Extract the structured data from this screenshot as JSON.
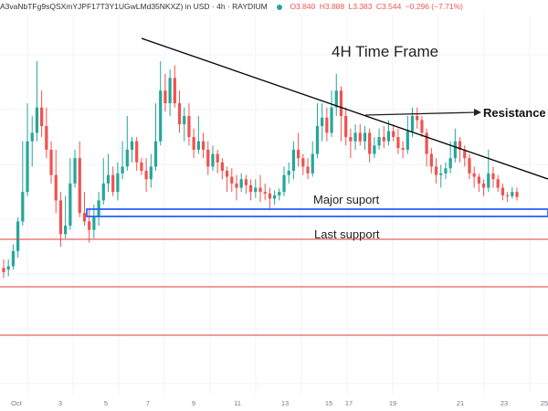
{
  "header": {
    "symbol": "A3vaNbTFg9sQSXmYJPF17T3Y1UGwLMd35NKXZ) in USD · 4h · RAYDIUM",
    "open": "O3.840",
    "high": "H3.888",
    "low": "L3.383",
    "close": "C3.544",
    "change": "−0.296 (−7.71%)",
    "status_color": "#26a69a"
  },
  "annotations": {
    "title": "4H Time Frame",
    "resistance": "Resistance T",
    "major_support": "Major suport",
    "last_support": "Last support"
  },
  "colors": {
    "up": "#26a69a",
    "down": "#ef5350",
    "support_box": "#2962ff",
    "horizontal_line": "#e53935",
    "trendline": "#000000"
  },
  "chart_data": {
    "type": "candlestick",
    "x_tick_labels": [
      "Oct",
      "3",
      "5",
      "7",
      "9",
      "11",
      "13",
      "15",
      "17",
      "19",
      "21",
      "23",
      "25"
    ],
    "price_min": 0,
    "price_max": 450,
    "note_units": "price axis not printed; values in relative price units",
    "candles": [
      [
        150,
        145,
        160,
        138
      ],
      [
        148,
        152,
        160,
        140
      ],
      [
        152,
        170,
        178,
        148
      ],
      [
        170,
        205,
        210,
        162
      ],
      [
        205,
        240,
        300,
        200
      ],
      [
        240,
        300,
        345,
        235
      ],
      [
        300,
        310,
        330,
        270
      ],
      [
        310,
        340,
        395,
        300
      ],
      [
        340,
        318,
        360,
        305
      ],
      [
        318,
        290,
        340,
        280
      ],
      [
        290,
        260,
        300,
        250
      ],
      [
        260,
        230,
        290,
        215
      ],
      [
        230,
        190,
        240,
        175
      ],
      [
        190,
        200,
        235,
        185
      ],
      [
        200,
        250,
        280,
        195
      ],
      [
        250,
        280,
        290,
        245
      ],
      [
        280,
        215,
        300,
        210
      ],
      [
        215,
        205,
        240,
        200
      ],
      [
        205,
        195,
        220,
        180
      ],
      [
        195,
        210,
        225,
        185
      ],
      [
        210,
        230,
        240,
        200
      ],
      [
        230,
        250,
        280,
        225
      ],
      [
        250,
        260,
        285,
        240
      ],
      [
        260,
        240,
        270,
        235
      ],
      [
        240,
        262,
        275,
        230
      ],
      [
        262,
        270,
        300,
        255
      ],
      [
        270,
        290,
        330,
        265
      ],
      [
        290,
        300,
        305,
        275
      ],
      [
        300,
        275,
        305,
        265
      ],
      [
        275,
        265,
        280,
        260
      ],
      [
        265,
        255,
        280,
        240
      ],
      [
        255,
        270,
        285,
        245
      ],
      [
        270,
        300,
        345,
        265
      ],
      [
        300,
        360,
        395,
        295
      ],
      [
        360,
        345,
        380,
        335
      ],
      [
        345,
        375,
        385,
        330
      ],
      [
        375,
        345,
        390,
        340
      ],
      [
        345,
        320,
        360,
        310
      ],
      [
        320,
        330,
        340,
        300
      ],
      [
        330,
        305,
        345,
        295
      ],
      [
        305,
        290,
        315,
        280
      ],
      [
        290,
        300,
        330,
        285
      ],
      [
        300,
        290,
        310,
        280
      ],
      [
        290,
        270,
        300,
        260
      ],
      [
        270,
        285,
        295,
        265
      ],
      [
        285,
        275,
        290,
        262
      ],
      [
        275,
        265,
        280,
        255
      ],
      [
        265,
        258,
        270,
        240
      ],
      [
        258,
        250,
        268,
        240
      ],
      [
        250,
        245,
        260,
        230
      ],
      [
        245,
        255,
        262,
        240
      ],
      [
        255,
        248,
        260,
        238
      ],
      [
        248,
        240,
        255,
        230
      ],
      [
        240,
        245,
        255,
        233
      ],
      [
        245,
        240,
        260,
        228
      ],
      [
        240,
        238,
        250,
        230
      ],
      [
        238,
        232,
        245,
        220
      ],
      [
        232,
        236,
        242,
        225
      ],
      [
        236,
        240,
        244,
        230
      ],
      [
        240,
        260,
        270,
        235
      ],
      [
        260,
        265,
        275,
        250
      ],
      [
        265,
        290,
        300,
        255
      ],
      [
        290,
        280,
        310,
        270
      ],
      [
        280,
        270,
        285,
        260
      ],
      [
        270,
        262,
        280,
        255
      ],
      [
        262,
        285,
        300,
        258
      ],
      [
        285,
        318,
        345,
        280
      ],
      [
        318,
        328,
        345,
        300
      ],
      [
        328,
        310,
        340,
        300
      ],
      [
        310,
        340,
        360,
        305
      ],
      [
        340,
        360,
        380,
        330
      ],
      [
        360,
        330,
        365,
        300
      ],
      [
        330,
        305,
        340,
        295
      ],
      [
        305,
        300,
        315,
        280
      ],
      [
        300,
        310,
        320,
        290
      ],
      [
        310,
        300,
        320,
        295
      ],
      [
        300,
        310,
        318,
        290
      ],
      [
        310,
        285,
        315,
        275
      ],
      [
        285,
        295,
        305,
        280
      ],
      [
        295,
        305,
        315,
        290
      ],
      [
        305,
        300,
        318,
        292
      ],
      [
        300,
        312,
        325,
        295
      ],
      [
        312,
        305,
        320,
        300
      ],
      [
        305,
        292,
        315,
        285
      ],
      [
        292,
        290,
        300,
        280
      ],
      [
        290,
        312,
        330,
        285
      ],
      [
        312,
        330,
        340,
        305
      ],
      [
        330,
        325,
        340,
        315
      ],
      [
        325,
        310,
        330,
        305
      ],
      [
        310,
        285,
        315,
        270
      ],
      [
        285,
        270,
        292,
        262
      ],
      [
        270,
        260,
        280,
        250
      ],
      [
        260,
        262,
        272,
        245
      ],
      [
        262,
        268,
        275,
        255
      ],
      [
        268,
        280,
        300,
        262
      ],
      [
        280,
        300,
        315,
        275
      ],
      [
        300,
        290,
        305,
        275
      ],
      [
        290,
        280,
        295,
        270
      ],
      [
        280,
        262,
        285,
        255
      ],
      [
        262,
        258,
        270,
        245
      ],
      [
        258,
        250,
        262,
        240
      ],
      [
        250,
        245,
        255,
        235
      ],
      [
        245,
        262,
        290,
        240
      ],
      [
        262,
        255,
        270,
        245
      ],
      [
        255,
        245,
        260,
        240
      ],
      [
        245,
        236,
        250,
        230
      ],
      [
        236,
        235,
        240,
        228
      ],
      [
        235,
        240,
        246,
        232
      ],
      [
        240,
        234,
        245,
        230
      ]
    ]
  }
}
